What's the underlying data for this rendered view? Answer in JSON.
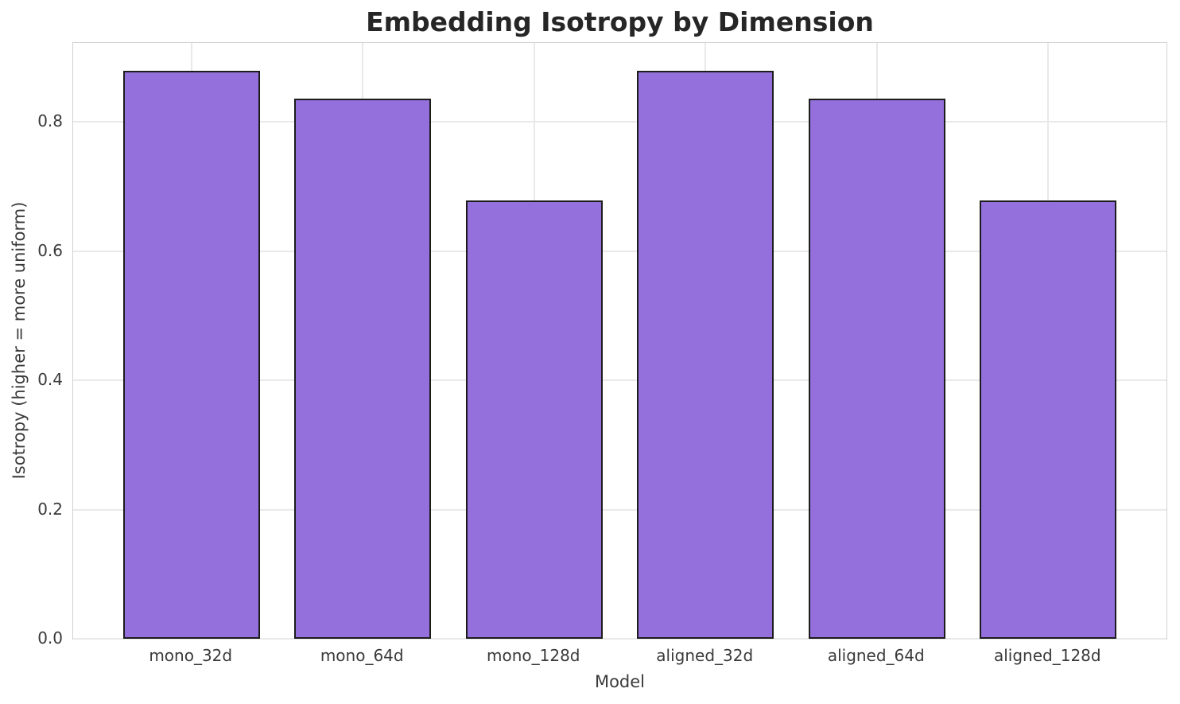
{
  "chart_data": {
    "type": "bar",
    "title": "Embedding Isotropy by Dimension",
    "xlabel": "Model",
    "ylabel": "Isotropy (higher = more uniform)",
    "categories": [
      "mono_32d",
      "mono_64d",
      "mono_128d",
      "aligned_32d",
      "aligned_64d",
      "aligned_128d"
    ],
    "values": [
      0.879,
      0.836,
      0.678,
      0.879,
      0.836,
      0.678
    ],
    "yticks": [
      {
        "value": 0.0,
        "label": "0.0"
      },
      {
        "value": 0.2,
        "label": "0.2"
      },
      {
        "value": 0.4,
        "label": "0.4"
      },
      {
        "value": 0.6,
        "label": "0.6"
      },
      {
        "value": 0.8,
        "label": "0.8"
      }
    ],
    "ylim": [
      0,
      0.922
    ],
    "xlim": [
      -0.69,
      5.69
    ],
    "bar_width": 0.8,
    "grid": true,
    "legend": "none",
    "colors": {
      "bar_fill": "#9370DB",
      "bar_edge": "#1c1c1c",
      "grid": "#e9e9e9",
      "spine": "#d2d2d2",
      "title_text": "#262626",
      "tick_text": "#3a3a3a",
      "background": "#ffffff"
    }
  }
}
